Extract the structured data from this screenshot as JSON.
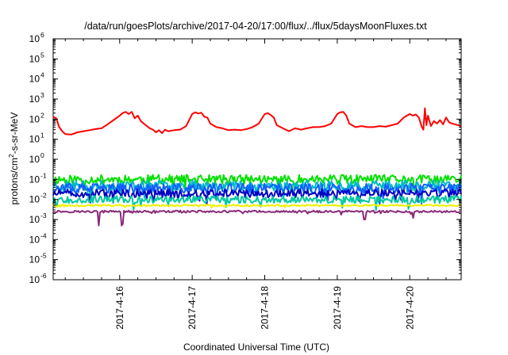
{
  "chart_data": {
    "type": "line",
    "title": "/data/run/goesPlots/archive/2017-04-20/17:00/flux/../flux/5daysMoonFluxes.txt",
    "xlabel": "Coordinated Universal Time (UTC)",
    "ylabel_parts": {
      "pre": "protons/cm",
      "sup": "2",
      "post": "-s-sr-MeV"
    },
    "y_scale": "log",
    "ylim": [
      1e-06,
      1000000.0
    ],
    "y_ticks": [
      {
        "base": "10",
        "exp": "-6",
        "value": 1e-06
      },
      {
        "base": "10",
        "exp": "-5",
        "value": 1e-05
      },
      {
        "base": "10",
        "exp": "-4",
        "value": 0.0001
      },
      {
        "base": "10",
        "exp": "-3",
        "value": 0.001
      },
      {
        "base": "10",
        "exp": "-2",
        "value": 0.01
      },
      {
        "base": "10",
        "exp": "-1",
        "value": 0.1
      },
      {
        "base": "10",
        "exp": "0",
        "value": 1
      },
      {
        "base": "10",
        "exp": "1",
        "value": 10
      },
      {
        "base": "10",
        "exp": "2",
        "value": 100
      },
      {
        "base": "10",
        "exp": "3",
        "value": 1000
      },
      {
        "base": "10",
        "exp": "4",
        "value": 10000
      },
      {
        "base": "10",
        "exp": "5",
        "value": 100000
      },
      {
        "base": "10",
        "exp": "6",
        "value": 1000000
      }
    ],
    "xlim": [
      "2017-04-15 02:00",
      "2017-04-20 17:00"
    ],
    "x_ticks": [
      {
        "label": "2017-4-16",
        "value": "2017-04-16"
      },
      {
        "label": "2017-4-17",
        "value": "2017-04-17"
      },
      {
        "label": "2017-4-18",
        "value": "2017-04-18"
      },
      {
        "label": "2017-4-19",
        "value": "2017-04-19"
      },
      {
        "label": "2017-4-20",
        "value": "2017-04-20"
      }
    ],
    "grid": false,
    "legend": "none",
    "series": [
      {
        "color": "#ff0000",
        "points": [
          [
            "2017-04-15 02:00",
            130
          ],
          [
            "2017-04-15 03:00",
            110
          ],
          [
            "2017-04-15 04:00",
            40
          ],
          [
            "2017-04-15 05:00",
            25
          ],
          [
            "2017-04-15 06:00",
            18
          ],
          [
            "2017-04-15 08:00",
            17
          ],
          [
            "2017-04-15 10:00",
            22
          ],
          [
            "2017-04-15 12:00",
            25
          ],
          [
            "2017-04-15 14:00",
            28
          ],
          [
            "2017-04-15 16:00",
            32
          ],
          [
            "2017-04-15 18:00",
            35
          ],
          [
            "2017-04-15 20:00",
            55
          ],
          [
            "2017-04-15 22:00",
            90
          ],
          [
            "2017-04-16 00:00",
            150
          ],
          [
            "2017-04-16 01:00",
            200
          ],
          [
            "2017-04-16 02:00",
            230
          ],
          [
            "2017-04-16 03:00",
            180
          ],
          [
            "2017-04-16 04:00",
            230
          ],
          [
            "2017-04-16 05:00",
            110
          ],
          [
            "2017-04-16 06:00",
            150
          ],
          [
            "2017-04-16 07:00",
            80
          ],
          [
            "2017-04-16 08:00",
            60
          ],
          [
            "2017-04-16 09:00",
            45
          ],
          [
            "2017-04-16 10:00",
            35
          ],
          [
            "2017-04-16 11:00",
            30
          ],
          [
            "2017-04-16 12:00",
            22
          ],
          [
            "2017-04-16 13:00",
            28
          ],
          [
            "2017-04-16 14:00",
            20
          ],
          [
            "2017-04-16 15:00",
            30
          ],
          [
            "2017-04-16 16:00",
            25
          ],
          [
            "2017-04-16 18:00",
            28
          ],
          [
            "2017-04-16 20:00",
            30
          ],
          [
            "2017-04-16 22:00",
            45
          ],
          [
            "2017-04-17 00:00",
            180
          ],
          [
            "2017-04-17 01:00",
            220
          ],
          [
            "2017-04-17 02:00",
            190
          ],
          [
            "2017-04-17 03:00",
            210
          ],
          [
            "2017-04-17 04:00",
            130
          ],
          [
            "2017-04-17 05:00",
            120
          ],
          [
            "2017-04-17 06:00",
            60
          ],
          [
            "2017-04-17 08:00",
            40
          ],
          [
            "2017-04-17 10:00",
            35
          ],
          [
            "2017-04-17 12:00",
            28
          ],
          [
            "2017-04-17 14:00",
            30
          ],
          [
            "2017-04-17 16:00",
            28
          ],
          [
            "2017-04-17 18:00",
            32
          ],
          [
            "2017-04-17 20:00",
            40
          ],
          [
            "2017-04-17 22:00",
            60
          ],
          [
            "2017-04-18 00:00",
            180
          ],
          [
            "2017-04-18 01:00",
            200
          ],
          [
            "2017-04-18 02:00",
            160
          ],
          [
            "2017-04-18 03:00",
            120
          ],
          [
            "2017-04-18 04:00",
            50
          ],
          [
            "2017-04-18 06:00",
            35
          ],
          [
            "2017-04-18 08:00",
            25
          ],
          [
            "2017-04-18 10:00",
            35
          ],
          [
            "2017-04-18 12:00",
            30
          ],
          [
            "2017-04-18 14:00",
            35
          ],
          [
            "2017-04-18 16:00",
            40
          ],
          [
            "2017-04-18 18:00",
            40
          ],
          [
            "2017-04-18 20:00",
            45
          ],
          [
            "2017-04-18 22:00",
            60
          ],
          [
            "2017-04-19 00:00",
            180
          ],
          [
            "2017-04-19 01:00",
            220
          ],
          [
            "2017-04-19 02:00",
            230
          ],
          [
            "2017-04-19 03:00",
            150
          ],
          [
            "2017-04-19 04:00",
            60
          ],
          [
            "2017-04-19 06:00",
            40
          ],
          [
            "2017-04-19 08:00",
            45
          ],
          [
            "2017-04-19 10:00",
            40
          ],
          [
            "2017-04-19 12:00",
            40
          ],
          [
            "2017-04-19 14:00",
            45
          ],
          [
            "2017-04-19 16:00",
            42
          ],
          [
            "2017-04-19 18:00",
            50
          ],
          [
            "2017-04-19 20:00",
            60
          ],
          [
            "2017-04-19 22:00",
            120
          ],
          [
            "2017-04-20 00:00",
            180
          ],
          [
            "2017-04-20 01:00",
            150
          ],
          [
            "2017-04-20 02:00",
            170
          ],
          [
            "2017-04-20 03:00",
            120
          ],
          [
            "2017-04-20 04:00",
            40
          ],
          [
            "2017-04-20 04:30",
            30
          ],
          [
            "2017-04-20 05:00",
            350
          ],
          [
            "2017-04-20 05:30",
            50
          ],
          [
            "2017-04-20 06:00",
            150
          ],
          [
            "2017-04-20 07:00",
            45
          ],
          [
            "2017-04-20 08:00",
            80
          ],
          [
            "2017-04-20 09:00",
            60
          ],
          [
            "2017-04-20 10:00",
            90
          ],
          [
            "2017-04-20 11:00",
            55
          ],
          [
            "2017-04-20 12:00",
            120
          ],
          [
            "2017-04-20 13:00",
            70
          ],
          [
            "2017-04-20 14:00",
            60
          ],
          [
            "2017-04-20 15:00",
            55
          ],
          [
            "2017-04-20 17:00",
            45
          ]
        ]
      },
      {
        "color": "#00e000",
        "base": 0.1,
        "amp": 0.45,
        "seed": 11
      },
      {
        "color": "#00b8c8",
        "base": 0.05,
        "amp": 0.5,
        "seed": 23
      },
      {
        "color": "#1060ff",
        "base": 0.035,
        "amp": 0.5,
        "seed": 37
      },
      {
        "color": "#0000c0",
        "base": 0.02,
        "amp": 0.4,
        "seed": 51
      },
      {
        "color": "#00c8a0",
        "base": 0.01,
        "amp": 0.35,
        "seed": 67
      },
      {
        "color": "#f0f000",
        "base": 0.005,
        "amp": 0.08,
        "seed": 79
      },
      {
        "color": "#8a2a7a",
        "base": 0.0025,
        "amp": 0.1,
        "seed": 97,
        "dips": [
          [
            "2017-04-15 17:00",
            0.0005
          ],
          [
            "2017-04-16 00:30",
            0.0005
          ],
          [
            "2017-04-16 01:00",
            0.0006
          ],
          [
            "2017-04-19 09:00",
            0.001
          ],
          [
            "2017-04-20 01:00",
            0.0012
          ]
        ]
      }
    ]
  }
}
